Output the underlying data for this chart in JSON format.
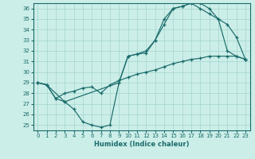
{
  "xlabel": "Humidex (Indice chaleur)",
  "bg_color": "#cceee8",
  "grid_color": "#aad8d2",
  "line_color": "#1a6b6b",
  "xlim": [
    -0.5,
    23.5
  ],
  "ylim": [
    24.5,
    36.5
  ],
  "xticks": [
    0,
    1,
    2,
    3,
    4,
    5,
    6,
    7,
    8,
    9,
    10,
    11,
    12,
    13,
    14,
    15,
    16,
    17,
    18,
    19,
    20,
    21,
    22,
    23
  ],
  "yticks": [
    25,
    26,
    27,
    28,
    29,
    30,
    31,
    32,
    33,
    34,
    35,
    36
  ],
  "line1_x": [
    0,
    1,
    3,
    4,
    5,
    6,
    7,
    8,
    9,
    10,
    11,
    12,
    13,
    14,
    15,
    16,
    17,
    18,
    19,
    20,
    21,
    22,
    23
  ],
  "line1_y": [
    29.0,
    28.8,
    27.2,
    26.5,
    25.3,
    25.0,
    24.8,
    25.0,
    29.0,
    31.5,
    31.7,
    31.8,
    33.0,
    34.5,
    36.0,
    36.2,
    36.5,
    36.5,
    36.0,
    35.0,
    34.5,
    33.3,
    31.2
  ],
  "line2_x": [
    0,
    1,
    2,
    3,
    9,
    10,
    11,
    12,
    13,
    14,
    15,
    16,
    17,
    18,
    19,
    20,
    21,
    22,
    23
  ],
  "line2_y": [
    29.0,
    28.8,
    27.5,
    27.2,
    29.0,
    31.5,
    31.7,
    32.0,
    33.0,
    35.0,
    36.0,
    36.2,
    36.5,
    36.0,
    35.5,
    35.0,
    32.0,
    31.5,
    31.2
  ],
  "line3_x": [
    0,
    1,
    2,
    3,
    4,
    5,
    6,
    7,
    8,
    9,
    10,
    11,
    12,
    13,
    14,
    15,
    16,
    17,
    18,
    19,
    20,
    21,
    22,
    23
  ],
  "line3_y": [
    29.0,
    28.8,
    27.5,
    28.0,
    28.2,
    28.5,
    28.6,
    28.0,
    28.8,
    29.2,
    29.5,
    29.8,
    30.0,
    30.2,
    30.5,
    30.8,
    31.0,
    31.2,
    31.3,
    31.5,
    31.5,
    31.5,
    31.5,
    31.2
  ]
}
